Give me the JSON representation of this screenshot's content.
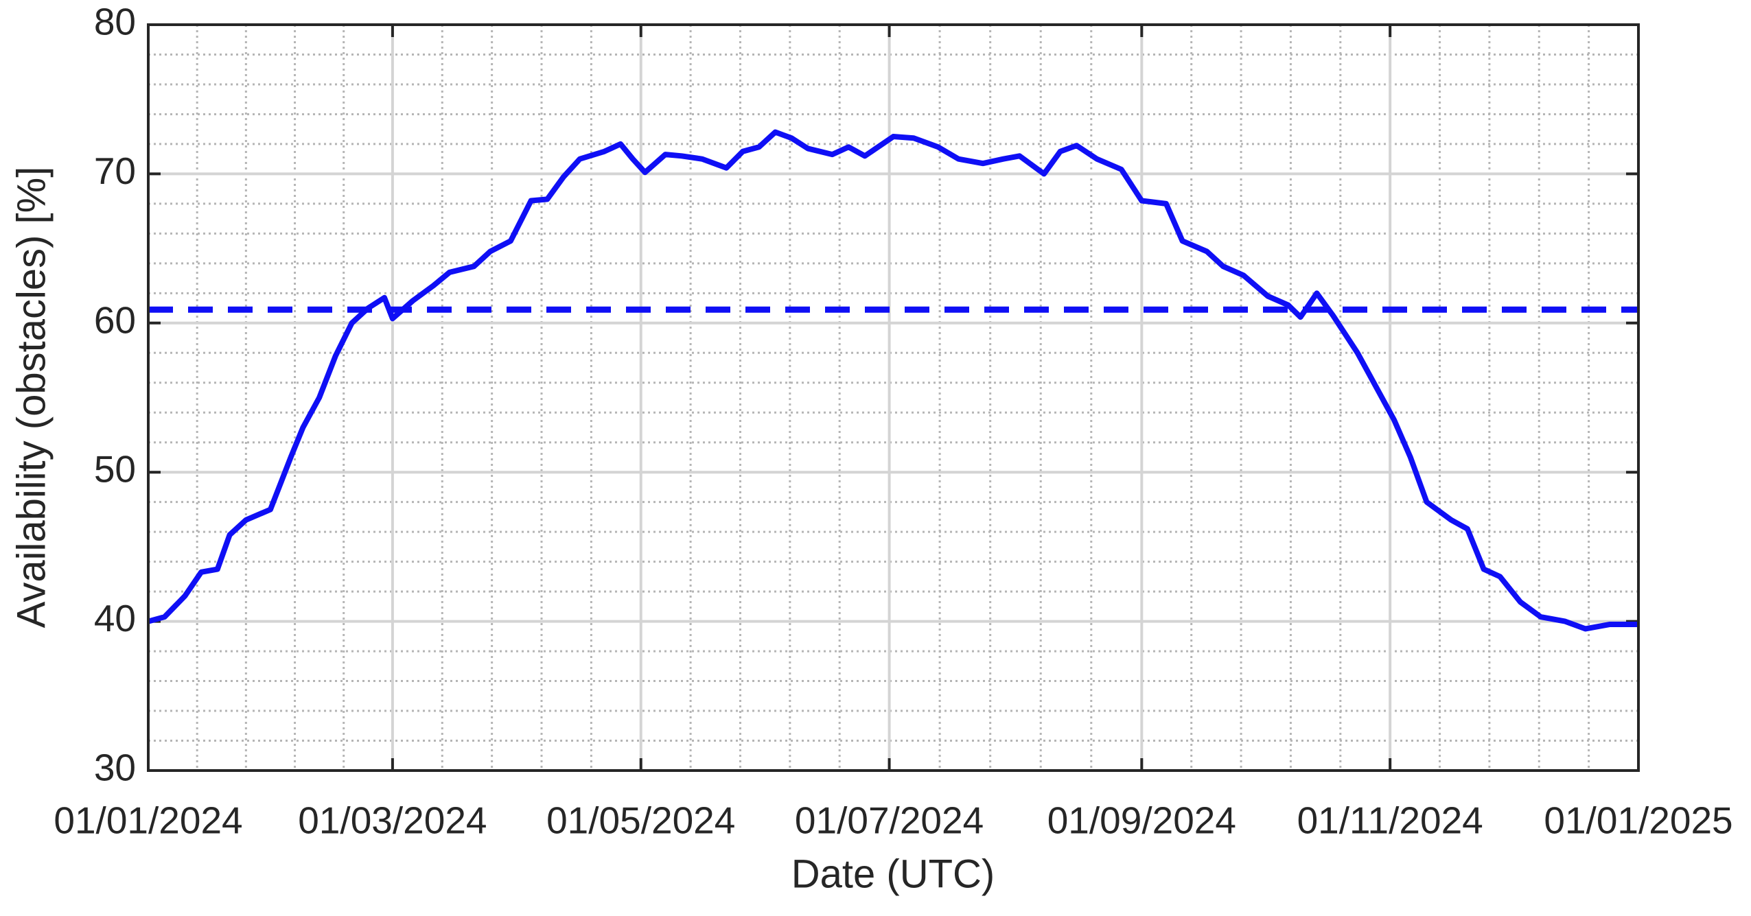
{
  "chart_data": {
    "type": "line",
    "x_label": "Date (UTC)",
    "y_label": "Availability (obstacles) [%]",
    "xlim": [
      "2024-01-01",
      "2025-01-01"
    ],
    "xticks": [
      {
        "value": "2024-01-01",
        "label": "01/01/2024"
      },
      {
        "value": "2024-03-01",
        "label": "01/03/2024"
      },
      {
        "value": "2024-05-01",
        "label": "01/05/2024"
      },
      {
        "value": "2024-07-01",
        "label": "01/07/2024"
      },
      {
        "value": "2024-09-01",
        "label": "01/09/2024"
      },
      {
        "value": "2024-11-01",
        "label": "01/11/2024"
      },
      {
        "value": "2025-01-01",
        "label": "01/01/2025"
      }
    ],
    "ylim": [
      30,
      80
    ],
    "yticks": [
      30,
      40,
      50,
      60,
      70,
      80
    ],
    "grid": true,
    "minor_grid": true,
    "x": [
      "2024-01-01",
      "2024-01-05",
      "2024-01-10",
      "2024-01-14",
      "2024-01-18",
      "2024-01-21",
      "2024-01-25",
      "2024-01-31",
      "2024-02-05",
      "2024-02-08",
      "2024-02-12",
      "2024-02-16",
      "2024-02-20",
      "2024-02-24",
      "2024-02-28",
      "2024-03-01",
      "2024-03-06",
      "2024-03-11",
      "2024-03-15",
      "2024-03-21",
      "2024-03-25",
      "2024-03-30",
      "2024-04-04",
      "2024-04-08",
      "2024-04-12",
      "2024-04-16",
      "2024-04-22",
      "2024-04-26",
      "2024-04-29",
      "2024-05-02",
      "2024-05-07",
      "2024-05-11",
      "2024-05-16",
      "2024-05-22",
      "2024-05-26",
      "2024-05-30",
      "2024-06-03",
      "2024-06-07",
      "2024-06-11",
      "2024-06-17",
      "2024-06-21",
      "2024-06-25",
      "2024-07-02",
      "2024-07-07",
      "2024-07-13",
      "2024-07-18",
      "2024-07-24",
      "2024-07-29",
      "2024-08-02",
      "2024-08-08",
      "2024-08-12",
      "2024-08-16",
      "2024-08-21",
      "2024-08-27",
      "2024-09-01",
      "2024-09-07",
      "2024-09-11",
      "2024-09-17",
      "2024-09-21",
      "2024-09-26",
      "2024-10-02",
      "2024-10-07",
      "2024-10-10",
      "2024-10-14",
      "2024-10-18",
      "2024-10-24",
      "2024-10-29",
      "2024-11-02",
      "2024-11-06",
      "2024-11-10",
      "2024-11-16",
      "2024-11-20",
      "2024-11-24",
      "2024-11-28",
      "2024-12-03",
      "2024-12-08",
      "2024-12-14",
      "2024-12-19",
      "2024-12-25",
      "2025-01-01"
    ],
    "series": [
      {
        "color": "#0f0ff5",
        "values": [
          40,
          40.3,
          41.7,
          43.3,
          43.5,
          45.8,
          46.8,
          47.5,
          51,
          53,
          55,
          57.8,
          60,
          61,
          61.7,
          60.3,
          61.5,
          62.5,
          63.4,
          63.8,
          64.8,
          65.5,
          68.2,
          68.3,
          69.8,
          71,
          71.5,
          72,
          71,
          70.1,
          71.3,
          71.2,
          71,
          70.4,
          71.5,
          71.8,
          72.8,
          72.4,
          71.7,
          71.3,
          71.8,
          71.2,
          72.5,
          72.4,
          71.8,
          71,
          70.7,
          71,
          71.2,
          70,
          71.5,
          71.9,
          71,
          70.3,
          68.2,
          68,
          65.5,
          64.8,
          63.8,
          63.2,
          61.8,
          61.2,
          60.4,
          62,
          60.5,
          58,
          55.5,
          53.5,
          51,
          48,
          46.8,
          46.2,
          43.5,
          43,
          41.3,
          40.3,
          40,
          39.5,
          39.8,
          39.8
        ]
      }
    ],
    "hlines": [
      {
        "value": 60.9,
        "color": "#0f0ff5",
        "dashed": true
      }
    ]
  }
}
